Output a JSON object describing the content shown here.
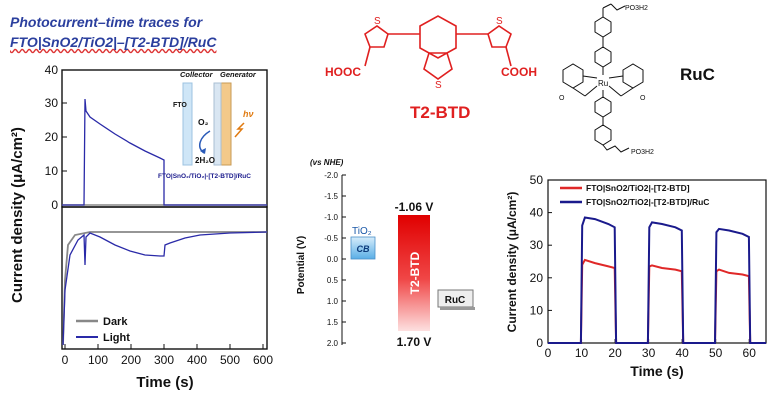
{
  "title": {
    "line1": "Photocurrent–time traces for",
    "line2": "FTO|SnO2/TiO2|–[T2-BTD]/RuC"
  },
  "t2btd": {
    "label": "T2-BTD",
    "left_group": "HOOC",
    "right_group": "COOH",
    "color": "#e02020"
  },
  "ruc": {
    "label": "RuC",
    "metal": "Ru",
    "substituent": "PO3H2"
  },
  "left_chart": {
    "ylabel": "Current density (μA/cm²)",
    "xlabel": "Time (s)",
    "y_ticks": [
      "40",
      "30",
      "20",
      "10",
      "0"
    ],
    "x_ticks": [
      "0",
      "100",
      "200",
      "300",
      "400",
      "500",
      "600"
    ],
    "legend": [
      {
        "name": "Dark",
        "color": "#888888"
      },
      {
        "name": "Light",
        "color": "#2a2aa8"
      }
    ],
    "inset": {
      "collector": "Collector",
      "generator": "Generator",
      "fto": "FTO",
      "o2": "O₂",
      "h2o": "2H₂O",
      "hv": "hν",
      "device": "FTO|SnO₂/TiO₂|-[T2-BTD]/RuC"
    }
  },
  "energy_diagram": {
    "vs": "(vs NHE)",
    "ylabel": "Potential (V)",
    "y_ticks": [
      "-2.0",
      "-1.5",
      "-1.0",
      "-0.5",
      "0.0",
      "0.5",
      "1.0",
      "1.5",
      "2.0"
    ],
    "tio2": "TiO₂",
    "cb": "CB",
    "dye": "T2-BTD",
    "top_value": "-1.06 V",
    "bottom_value": "1.70 V",
    "ruc": "RuC"
  },
  "chart_data": {
    "type": "line",
    "xlabel": "Time (s)",
    "ylabel": "Current density (μA/cm²)",
    "xlim": [
      0,
      65
    ],
    "ylim": [
      0,
      50
    ],
    "x_ticks": [
      0,
      10,
      20,
      30,
      40,
      50,
      60
    ],
    "y_ticks": [
      0,
      10,
      20,
      30,
      40,
      50
    ],
    "legend_position": "top-right",
    "series": [
      {
        "name": "FTO|SnO2/TiO2|-[T2-BTD]",
        "color": "#e02828",
        "x": [
          0,
          9.8,
          10.2,
          11,
          14,
          18,
          19.9,
          20.3,
          29.8,
          30.2,
          31,
          34,
          38,
          39.9,
          40.3,
          49.8,
          50.2,
          51,
          54,
          58,
          59.9,
          60.3,
          65
        ],
        "y": [
          0,
          0,
          24,
          25.5,
          24.5,
          23.5,
          23,
          0,
          0,
          23.5,
          23.8,
          23,
          22.5,
          22,
          0,
          0,
          22,
          22.5,
          21.5,
          21,
          20.5,
          0,
          0
        ]
      },
      {
        "name": "FTO|SnO2/TiO2|-[T2-BTD]/RuC",
        "color": "#1a1a8c",
        "x": [
          0,
          9.8,
          10.2,
          11,
          14,
          18,
          19.9,
          20.3,
          29.8,
          30.2,
          31,
          34,
          38,
          39.9,
          40.3,
          49.8,
          50.2,
          51,
          54,
          58,
          59.9,
          60.3,
          65
        ],
        "y": [
          0,
          0,
          36,
          38.5,
          38,
          36.5,
          35.5,
          0,
          0,
          35.5,
          37,
          36.5,
          35.5,
          34.5,
          0,
          0,
          34,
          35,
          34.5,
          33.5,
          32.5,
          0,
          0
        ]
      }
    ]
  }
}
